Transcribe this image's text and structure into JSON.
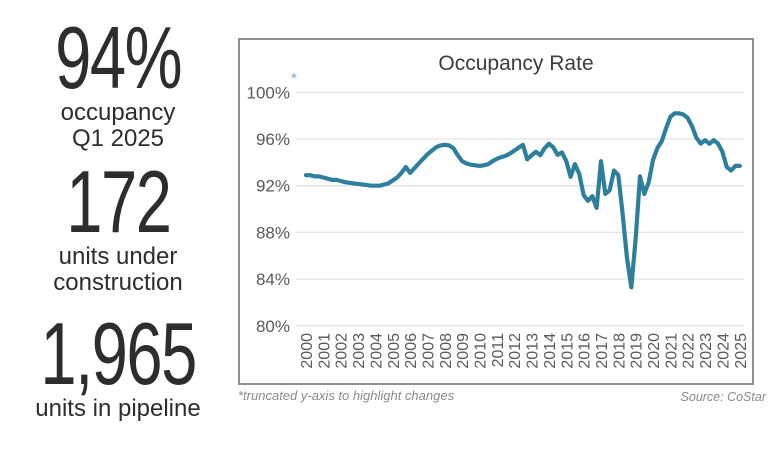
{
  "stats": [
    {
      "value": "94%",
      "labels": [
        "occupancy",
        "Q1 2025"
      ]
    },
    {
      "value": "172",
      "labels": [
        "units under",
        "construction"
      ]
    },
    {
      "value": "1,965",
      "labels": [
        "units in pipeline"
      ]
    }
  ],
  "chart": {
    "title": "Occupancy Rate",
    "truncation_marker": "*",
    "footnote": "*truncated y-axis to highlight changes",
    "source": "Source: CoStar"
  },
  "chart_data": {
    "type": "line",
    "title": "Occupancy Rate",
    "xlabel": "",
    "ylabel": "",
    "grid": true,
    "legend_position": "none",
    "y_range": [
      80,
      100
    ],
    "y_ticks": [
      {
        "label": "100%",
        "value": 100
      },
      {
        "label": "96%",
        "value": 96
      },
      {
        "label": "92%",
        "value": 92
      },
      {
        "label": "88%",
        "value": 88
      },
      {
        "label": "84%",
        "value": 84
      },
      {
        "label": "80%",
        "value": 80
      }
    ],
    "x_tick_labels": [
      "2000",
      "2001",
      "2002",
      "2003",
      "2004",
      "2005",
      "2006",
      "2007",
      "2008",
      "2009",
      "2010",
      "2011",
      "2012",
      "2013",
      "2014",
      "2015",
      "2016",
      "2017",
      "2018",
      "2019",
      "2020",
      "2021",
      "2022",
      "2023",
      "2024",
      "2025"
    ],
    "x_start_year": 2000,
    "x_step_years": 0.25,
    "series": [
      {
        "name": "Occupancy Rate (%)",
        "values": [
          92.9,
          92.9,
          92.8,
          92.8,
          92.7,
          92.6,
          92.5,
          92.5,
          92.4,
          92.3,
          92.25,
          92.2,
          92.15,
          92.1,
          92.05,
          92.0,
          92.0,
          92.0,
          92.1,
          92.2,
          92.45,
          92.7,
          93.1,
          93.6,
          93.1,
          93.5,
          93.9,
          94.3,
          94.7,
          95.0,
          95.3,
          95.45,
          95.5,
          95.45,
          95.2,
          94.6,
          94.1,
          93.9,
          93.8,
          93.75,
          93.7,
          93.75,
          93.85,
          94.1,
          94.3,
          94.45,
          94.55,
          94.75,
          95.0,
          95.25,
          95.5,
          94.25,
          94.6,
          94.9,
          94.6,
          95.2,
          95.6,
          95.3,
          94.65,
          94.85,
          94.1,
          92.75,
          93.85,
          93.0,
          91.2,
          90.7,
          91.1,
          90.1,
          94.1,
          91.3,
          91.6,
          93.3,
          92.9,
          89.6,
          85.8,
          83.3,
          87.5,
          92.8,
          91.3,
          92.3,
          94.2,
          95.2,
          95.8,
          96.9,
          97.9,
          98.2,
          98.2,
          98.1,
          97.8,
          97.1,
          96.1,
          95.6,
          95.9,
          95.6,
          95.9,
          95.6,
          94.9,
          93.6,
          93.3,
          93.7,
          93.7
        ]
      }
    ],
    "colors": {
      "line": "#2e7f9b",
      "grid": "#e3e3e3",
      "border": "#8f8f8f",
      "tick_text": "#595959",
      "title_text": "#3d3d3d",
      "asterisk": "#7aaec6"
    },
    "footnote": "*truncated y-axis to highlight changes",
    "source": "Source: CoStar"
  }
}
